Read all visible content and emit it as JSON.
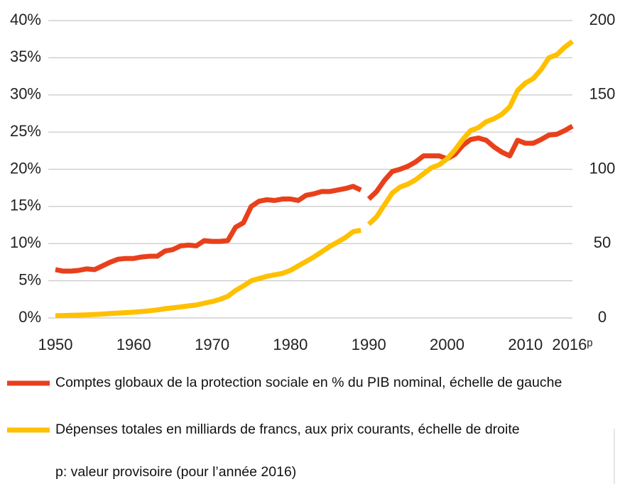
{
  "chart_data": {
    "type": "line",
    "xlim": [
      1950,
      2016
    ],
    "xticks": [
      1950,
      1960,
      1970,
      1980,
      1990,
      2000,
      2010,
      {
        "value": 2016,
        "label": "2016ᵖ"
      }
    ],
    "ylim": [
      0,
      40
    ],
    "yticks": [
      {
        "value": 0,
        "label": "0%"
      },
      {
        "value": 5,
        "label": "5%"
      },
      {
        "value": 10,
        "label": "10%"
      },
      {
        "value": 15,
        "label": "15%"
      },
      {
        "value": 20,
        "label": "20%"
      },
      {
        "value": 25,
        "label": "25%"
      },
      {
        "value": 30,
        "label": "30%"
      },
      {
        "value": 35,
        "label": "35%"
      },
      {
        "value": 40,
        "label": "40%"
      }
    ],
    "y2lim": [
      0,
      200
    ],
    "y2ticks": [
      0,
      50,
      100,
      150,
      200
    ],
    "grid": true,
    "series": [
      {
        "name": "Comptes globaux de la protection sociale en % du PIB nominal, échelle de gauche",
        "color": "#e8401c",
        "segments": [
          {
            "x": [
              1950,
              1951,
              1952,
              1953,
              1954,
              1955,
              1956,
              1957,
              1958,
              1959,
              1960,
              1961,
              1962,
              1963,
              1964,
              1965,
              1966,
              1967,
              1968,
              1969,
              1970,
              1971,
              1972,
              1973,
              1974,
              1975,
              1976,
              1977,
              1978,
              1979,
              1980,
              1981,
              1982,
              1983,
              1984,
              1985,
              1986,
              1987,
              1988,
              1989
            ],
            "values": [
              6.5,
              6.3,
              6.3,
              6.4,
              6.6,
              6.5,
              7.0,
              7.5,
              7.9,
              8.0,
              8.0,
              8.2,
              8.3,
              8.3,
              9.0,
              9.2,
              9.7,
              9.8,
              9.7,
              10.4,
              10.3,
              10.3,
              10.4,
              12.2,
              12.8,
              15.0,
              15.7,
              15.9,
              15.8,
              16.0,
              16.0,
              15.8,
              16.5,
              16.7,
              17.0,
              17.0,
              17.2,
              17.4,
              17.7,
              17.2
            ]
          },
          {
            "x": [
              1990,
              1991,
              1992,
              1993,
              1994,
              1995,
              1996,
              1997,
              1998,
              1999,
              2000,
              2001,
              2002,
              2003,
              2004,
              2005,
              2006,
              2007,
              2008,
              2009,
              2010,
              2011,
              2012,
              2013,
              2014,
              2015,
              2016
            ],
            "values": [
              16.0,
              17.0,
              18.5,
              19.7,
              20.0,
              20.4,
              21.0,
              21.8,
              21.8,
              21.8,
              21.4,
              22.0,
              23.2,
              24.0,
              24.2,
              23.9,
              23.0,
              22.3,
              21.8,
              23.9,
              23.5,
              23.5,
              24.0,
              24.6,
              24.7,
              25.2,
              25.8
            ]
          }
        ]
      },
      {
        "name": "Dépenses totales en milliards de francs, aux prix courants, échelle de droite",
        "color": "#ffc000",
        "axis": "y2",
        "segments": [
          {
            "x": [
              1950,
              1951,
              1952,
              1953,
              1954,
              1955,
              1956,
              1957,
              1958,
              1959,
              1960,
              1961,
              1962,
              1963,
              1964,
              1965,
              1966,
              1967,
              1968,
              1969,
              1970,
              1971,
              1972,
              1973,
              1974,
              1975,
              1976,
              1977,
              1978,
              1979,
              1980,
              1981,
              1982,
              1983,
              1984,
              1985,
              1986,
              1987,
              1988,
              1989
            ],
            "values": [
              1.5,
              1.6,
              1.8,
              1.9,
              2.1,
              2.3,
              2.6,
              3.0,
              3.3,
              3.6,
              3.9,
              4.3,
              4.8,
              5.4,
              6.2,
              6.8,
              7.4,
              8.1,
              8.7,
              9.9,
              11.0,
              12.5,
              14.5,
              18.5,
              21.5,
              25,
              26.5,
              28,
              29,
              30,
              32,
              35,
              38,
              41,
              44.5,
              48,
              51,
              54,
              58,
              59
            ]
          },
          {
            "x": [
              1990,
              1991,
              1992,
              1993,
              1994,
              1995,
              1996,
              1997,
              1998,
              1999,
              2000,
              2001,
              2002,
              2003,
              2004,
              2005,
              2006,
              2007,
              2008,
              2009,
              2010,
              2011,
              2012,
              2013,
              2014,
              2015,
              2016
            ],
            "values": [
              63,
              68,
              76,
              84,
              88,
              90,
              93,
              97,
              101,
              103,
              107,
              113,
              120,
              126,
              128,
              132,
              134,
              137,
              142,
              153,
              158,
              161,
              167,
              175,
              177,
              182,
              186
            ]
          }
        ]
      }
    ],
    "note": "p: valeur provisoire (pour l’année 2016)"
  }
}
